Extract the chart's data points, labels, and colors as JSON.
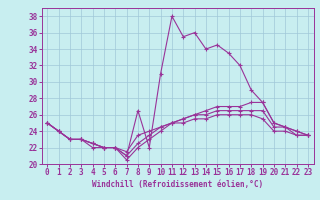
{
  "xlabel": "Windchill (Refroidissement éolien,°C)",
  "bg_color": "#c8eef0",
  "grid_color": "#a0c8d8",
  "line_color": "#993399",
  "x_ticks": [
    0,
    1,
    2,
    3,
    4,
    5,
    6,
    7,
    8,
    9,
    10,
    11,
    12,
    13,
    14,
    15,
    16,
    17,
    18,
    19,
    20,
    21,
    22,
    23
  ],
  "y_ticks": [
    20,
    22,
    24,
    26,
    28,
    30,
    32,
    34,
    36,
    38
  ],
  "xlim": [
    -0.5,
    23.5
  ],
  "ylim": [
    20,
    39
  ],
  "series": [
    {
      "x": [
        0,
        1,
        2,
        3,
        4,
        5,
        6,
        7,
        8,
        9,
        10,
        11,
        12,
        13,
        14,
        15,
        16,
        17,
        18,
        19,
        20,
        21,
        22,
        23
      ],
      "y": [
        25.0,
        24.0,
        23.0,
        23.0,
        22.0,
        22.0,
        22.0,
        21.0,
        26.5,
        22.0,
        31.0,
        38.0,
        35.5,
        36.0,
        34.0,
        34.5,
        33.5,
        32.0,
        29.0,
        27.5,
        25.0,
        24.5,
        24.0,
        23.5
      ]
    },
    {
      "x": [
        0,
        1,
        2,
        3,
        4,
        5,
        6,
        7,
        8,
        9,
        10,
        11,
        12,
        13,
        14,
        15,
        16,
        17,
        18,
        19,
        20,
        21,
        22,
        23
      ],
      "y": [
        25.0,
        24.0,
        23.0,
        23.0,
        22.5,
        22.0,
        22.0,
        20.5,
        22.0,
        23.0,
        24.0,
        25.0,
        25.5,
        26.0,
        26.5,
        27.0,
        27.0,
        27.0,
        27.5,
        27.5,
        25.0,
        24.5,
        24.0,
        23.5
      ]
    },
    {
      "x": [
        0,
        1,
        2,
        3,
        4,
        5,
        6,
        7,
        8,
        9,
        10,
        11,
        12,
        13,
        14,
        15,
        16,
        17,
        18,
        19,
        20,
        21,
        22,
        23
      ],
      "y": [
        25.0,
        24.0,
        23.0,
        23.0,
        22.5,
        22.0,
        22.0,
        21.0,
        22.5,
        23.5,
        24.5,
        25.0,
        25.5,
        26.0,
        26.0,
        26.5,
        26.5,
        26.5,
        26.5,
        26.5,
        24.5,
        24.5,
        23.5,
        23.5
      ]
    },
    {
      "x": [
        0,
        1,
        2,
        3,
        4,
        5,
        6,
        7,
        8,
        9,
        10,
        11,
        12,
        13,
        14,
        15,
        16,
        17,
        18,
        19,
        20,
        21,
        22,
        23
      ],
      "y": [
        25.0,
        24.0,
        23.0,
        23.0,
        22.5,
        22.0,
        22.0,
        21.5,
        23.5,
        24.0,
        24.5,
        25.0,
        25.0,
        25.5,
        25.5,
        26.0,
        26.0,
        26.0,
        26.0,
        25.5,
        24.0,
        24.0,
        23.5,
        23.5
      ]
    }
  ]
}
